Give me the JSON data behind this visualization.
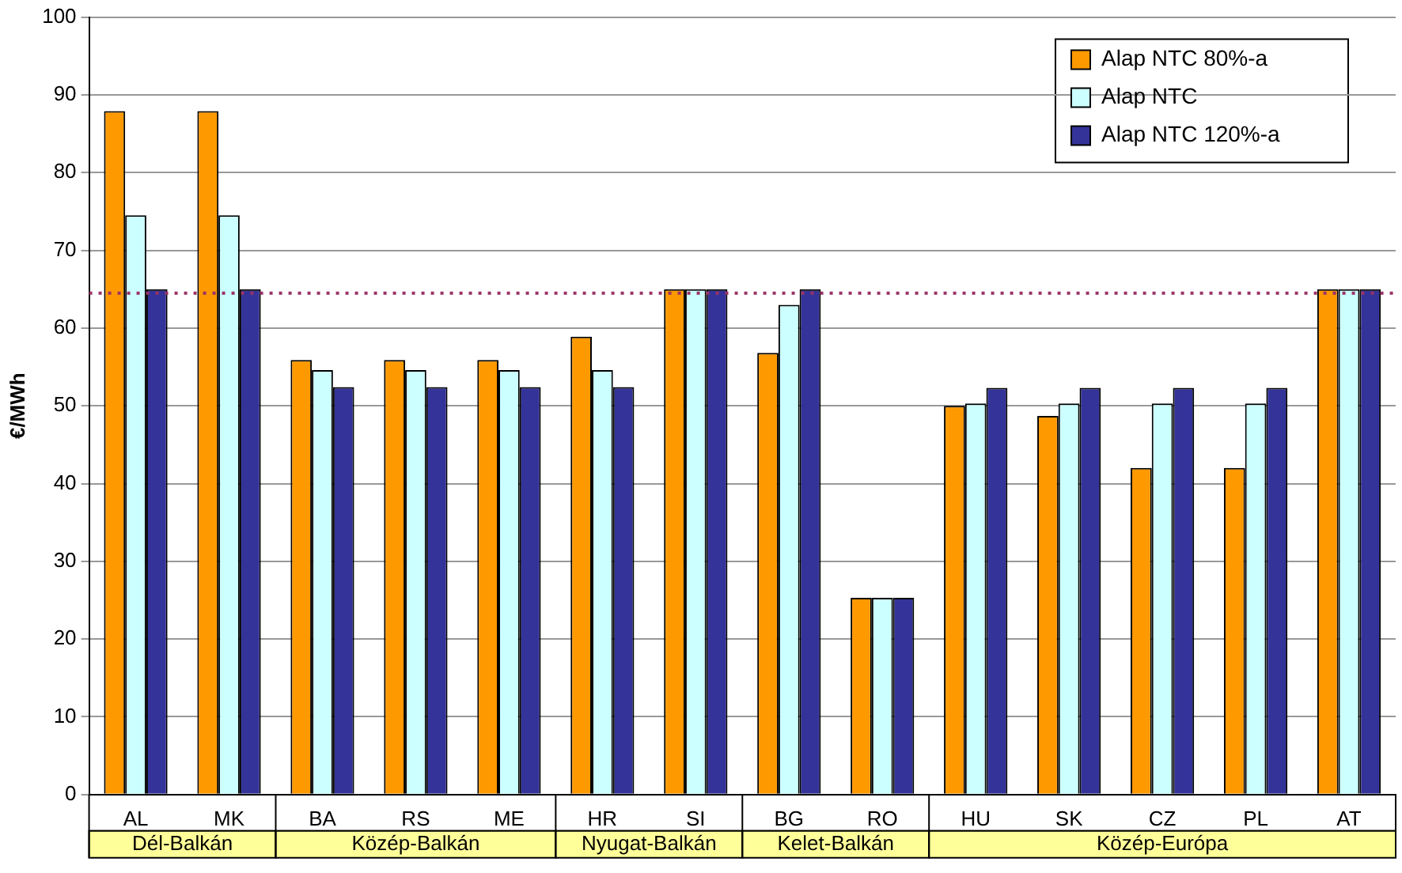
{
  "chart_data": {
    "type": "bar",
    "ylabel": "€/MWh",
    "categories": [
      "AL",
      "MK",
      "BA",
      "RS",
      "ME",
      "HR",
      "SI",
      "BG",
      "RO",
      "HU",
      "SK",
      "CZ",
      "PL",
      "AT"
    ],
    "series": [
      {
        "name": "Alap NTC 80%-a",
        "color": "#ff9900",
        "values": [
          87.9,
          87.9,
          55.9,
          55.9,
          55.9,
          58.9,
          65,
          56.8,
          25.3,
          50,
          48.7,
          42,
          42,
          65
        ]
      },
      {
        "name": "Alap NTC",
        "color": "#ccffff",
        "values": [
          74.5,
          74.5,
          54.6,
          54.6,
          54.6,
          54.6,
          65,
          63,
          25.3,
          50.3,
          50.3,
          50.3,
          50.3,
          65
        ]
      },
      {
        "name": "Alap NTC 120%-a",
        "color": "#333399",
        "values": [
          65,
          65,
          52.4,
          52.4,
          52.4,
          52.4,
          65,
          65,
          25.3,
          52.3,
          52.3,
          52.3,
          52.3,
          65
        ]
      }
    ],
    "annotations": [
      "Dél-Balkán",
      "Közép-Balkán",
      "Nyugat-Balkán",
      "Kelet-Balkán",
      "Közép-Európa"
    ],
    "ref_lines": [
      {
        "axis": "y",
        "value": 64.5,
        "color": "#993366",
        "line_style": "dotted"
      }
    ],
    "ylim": [
      0,
      100
    ],
    "yticks": [
      0,
      10,
      20,
      30,
      40,
      50,
      60,
      70,
      80,
      90,
      100
    ],
    "grid": "y",
    "legend": "top right"
  }
}
